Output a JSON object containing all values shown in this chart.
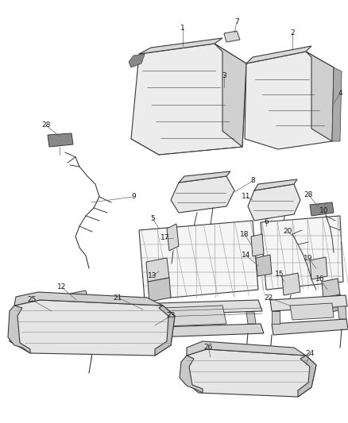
{
  "background_color": "#ffffff",
  "figure_width": 4.38,
  "figure_height": 5.33,
  "dpi": 100,
  "label_fontsize": 6.5,
  "label_color": "#1a1a1a",
  "line_color": "#3a3a3a",
  "fill_light": "#f2f2f2",
  "fill_mid": "#d8d8d8",
  "fill_dark": "#b0b0b0",
  "fill_stripe": "#c8c8c8"
}
